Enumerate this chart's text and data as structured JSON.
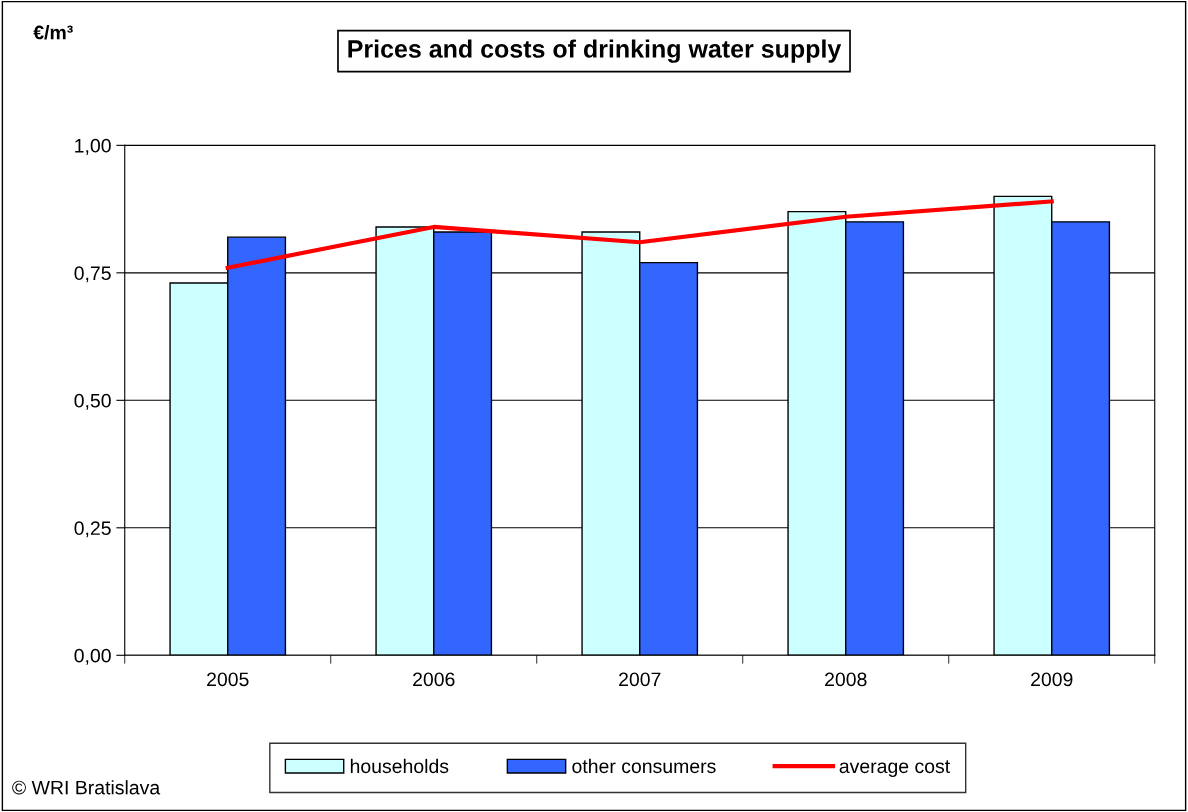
{
  "chart_data": {
    "type": "bar",
    "title": "Prices and costs of drinking water supply",
    "categories": [
      "2005",
      "2006",
      "2007",
      "2008",
      "2009"
    ],
    "series": [
      {
        "name": "households",
        "color": "#ccffff",
        "values": [
          0.73,
          0.84,
          0.83,
          0.87,
          0.9
        ]
      },
      {
        "name": "other consumers",
        "color": "#3366ff",
        "values": [
          0.82,
          0.83,
          0.77,
          0.85,
          0.85
        ]
      },
      {
        "name": "average cost",
        "type": "line",
        "color": "#ff0000",
        "values": [
          0.76,
          0.84,
          0.81,
          0.86,
          0.89
        ]
      }
    ],
    "ylim": [
      0,
      1
    ],
    "yticks": [
      {
        "value": 0,
        "label": "0,00"
      },
      {
        "value": 0.25,
        "label": "0,25"
      },
      {
        "value": 0.5,
        "label": "0,50"
      },
      {
        "value": 0.75,
        "label": "0,75"
      },
      {
        "value": 1,
        "label": "1,00"
      }
    ],
    "grid": "y",
    "legend": "bottom",
    "marker": "none",
    "annotations": [
      "€/m³",
      "© WRI Bratislava"
    ]
  }
}
